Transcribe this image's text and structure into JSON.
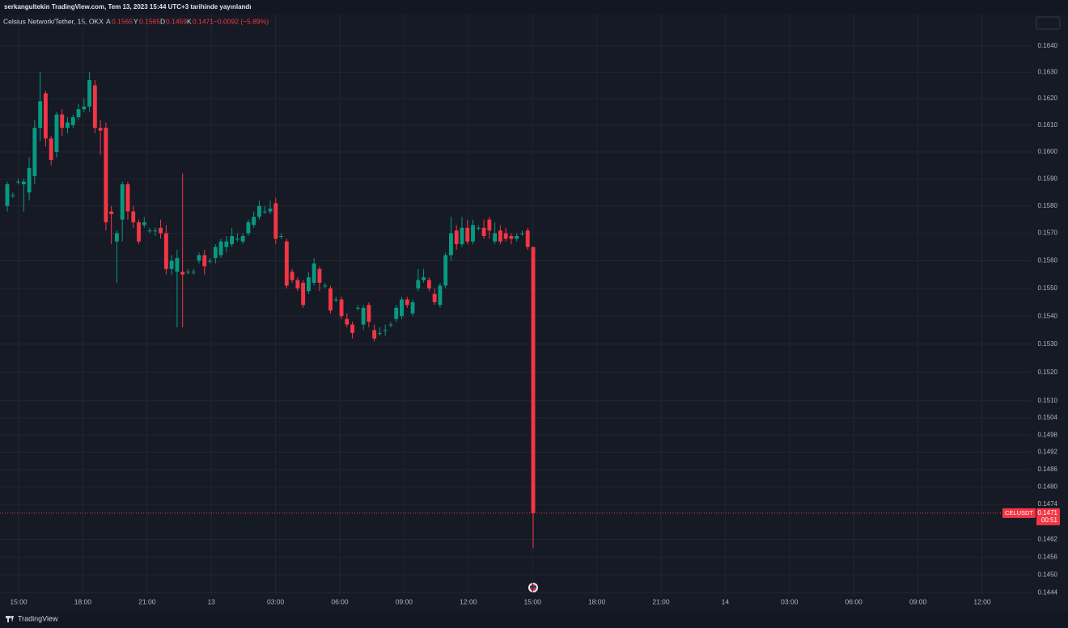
{
  "header": "serkangultekin TradingView.com, Tem 13, 2023 15:44 UTC+3 tarihinde yayınlandı",
  "footer": "TradingView",
  "chart_data": {
    "type": "candlestick",
    "title": "Celsius Network/Tether, 15, OKX",
    "ohlc_legend": [
      {
        "label": "A",
        "value": 0.1565
      },
      {
        "label": "Y",
        "value": 0.1565
      },
      {
        "label": "D",
        "value": 0.1459
      },
      {
        "label": "K",
        "value": 0.1471
      }
    ],
    "change_label": "−0.0092 (−5.89%)",
    "last_price": {
      "symbol": "CELUSDT",
      "value": 0.1471,
      "countdown": "00:51"
    },
    "up_color": "#089981",
    "down_color": "#f23645",
    "log_scale": true,
    "grid": true,
    "ylim": [
      0.1443,
      0.1652
    ],
    "yticks": [
      {
        "value": 0.164,
        "label": "0.1640"
      },
      {
        "value": 0.163,
        "label": "0.1630"
      },
      {
        "value": 0.162,
        "label": "0.1620"
      },
      {
        "value": 0.161,
        "label": "0.1610"
      },
      {
        "value": 0.16,
        "label": "0.1600"
      },
      {
        "value": 0.159,
        "label": "0.1590"
      },
      {
        "value": 0.158,
        "label": "0.1580"
      },
      {
        "value": 0.157,
        "label": "0.1570"
      },
      {
        "value": 0.156,
        "label": "0.1560"
      },
      {
        "value": 0.155,
        "label": "0.1550"
      },
      {
        "value": 0.154,
        "label": "0.1540"
      },
      {
        "value": 0.153,
        "label": "0.1530"
      },
      {
        "value": 0.152,
        "label": "0.1520"
      },
      {
        "value": 0.151,
        "label": "0.1510"
      },
      0.1504,
      0.1498,
      0.1492,
      0.1486,
      {
        "value": 0.148,
        "label": "0.1480"
      },
      0.1474,
      0.1462,
      0.1456,
      {
        "value": 0.145,
        "label": "0.1450"
      },
      0.1444
    ],
    "xtick_labels": [
      "15:00",
      "18:00",
      "21:00",
      "13",
      "03:00",
      "06:00",
      "09:00",
      "12:00",
      "15:00",
      "18:00",
      "21:00",
      "14",
      "03:00",
      "06:00",
      "09:00",
      "12:00"
    ],
    "open": [
      0.158,
      0.1584,
      0.1589,
      0.1588,
      0.1585,
      0.1591,
      0.1609,
      0.1622,
      0.1605,
      0.16,
      0.1614,
      0.1609,
      0.161,
      0.1613,
      0.1616,
      0.1617,
      0.1625,
      0.1609,
      0.1609,
      0.1578,
      0.1567,
      0.1575,
      0.1588,
      0.1578,
      0.1574,
      0.1573,
      0.1571,
      0.1571,
      0.1572,
      0.157,
      0.1557,
      0.1556,
      0.1556,
      0.1556,
      0.1556,
      0.156,
      0.1562,
      0.156,
      0.1561,
      0.1562,
      0.1565,
      0.1566,
      0.1568,
      0.1567,
      0.157,
      0.1573,
      0.1576,
      0.1578,
      0.1578,
      0.1581,
      0.1569,
      0.1567,
      0.1556,
      0.1553,
      0.1552,
      0.1549,
      0.1552,
      0.1557,
      0.1551,
      0.155,
      0.1546,
      0.1546,
      0.1539,
      0.1537,
      0.1543,
      0.1537,
      0.1544,
      0.1535,
      0.1534,
      0.1535,
      0.1537,
      0.1539,
      0.154,
      0.1546,
      0.1541,
      0.155,
      0.1553,
      0.1553,
      0.1548,
      0.1544,
      0.1551,
      0.1562,
      0.1571,
      0.1566,
      0.1572,
      0.1567,
      0.1572,
      0.1572,
      0.1575,
      0.1567,
      0.1571,
      0.157,
      0.1569,
      0.1568,
      0.157,
      0.1571,
      0.1565
    ],
    "high": [
      0.1589,
      0.1585,
      0.159,
      0.159,
      0.1598,
      0.1612,
      0.163,
      0.1623,
      0.1606,
      0.1615,
      0.1616,
      0.1613,
      0.1614,
      0.1618,
      0.162,
      0.163,
      0.1627,
      0.1612,
      0.1611,
      0.158,
      0.1571,
      0.1589,
      0.1589,
      0.158,
      0.1575,
      0.1576,
      0.1572,
      0.1572,
      0.1575,
      0.1573,
      0.1562,
      0.1564,
      0.1592,
      0.1557,
      0.1557,
      0.1563,
      0.1564,
      0.1561,
      0.1566,
      0.1568,
      0.1569,
      0.1572,
      0.157,
      0.157,
      0.1575,
      0.1578,
      0.1582,
      0.158,
      0.1582,
      0.1583,
      0.157,
      0.1568,
      0.1557,
      0.1554,
      0.1553,
      0.1556,
      0.1561,
      0.1558,
      0.1552,
      0.1551,
      0.1547,
      0.1547,
      0.1541,
      0.1538,
      0.1544,
      0.1544,
      0.1545,
      0.1537,
      0.1536,
      0.1537,
      0.1538,
      0.1544,
      0.1547,
      0.1547,
      0.1546,
      0.1557,
      0.1557,
      0.1554,
      0.155,
      0.1552,
      0.1563,
      0.1576,
      0.1573,
      0.1576,
      0.1575,
      0.1575,
      0.1573,
      0.1575,
      0.1576,
      0.1574,
      0.1573,
      0.1572,
      0.157,
      0.157,
      0.1571,
      0.1572,
      0.1565
    ],
    "low": [
      0.1578,
      0.1583,
      0.1588,
      0.1578,
      0.1582,
      0.1588,
      0.1604,
      0.1602,
      0.1595,
      0.1598,
      0.1606,
      0.1607,
      0.1609,
      0.1612,
      0.1615,
      0.1615,
      0.1607,
      0.1599,
      0.1571,
      0.1566,
      0.1552,
      0.1567,
      0.1575,
      0.1572,
      0.1566,
      0.1572,
      0.157,
      0.1569,
      0.1568,
      0.1555,
      0.1555,
      0.1536,
      0.1536,
      0.1555,
      0.1555,
      0.1559,
      0.1555,
      0.1559,
      0.1559,
      0.1561,
      0.1563,
      0.1565,
      0.1567,
      0.1566,
      0.1569,
      0.1572,
      0.1575,
      0.1577,
      0.1577,
      0.1566,
      0.1568,
      0.155,
      0.1552,
      0.1549,
      0.1543,
      0.1548,
      0.1551,
      0.1549,
      0.155,
      0.1541,
      0.1545,
      0.1539,
      0.1536,
      0.1532,
      0.1542,
      0.1535,
      0.1536,
      0.1531,
      0.1533,
      0.1533,
      0.1536,
      0.1538,
      0.1539,
      0.1543,
      0.154,
      0.1549,
      0.1552,
      0.1549,
      0.1544,
      0.1543,
      0.155,
      0.156,
      0.1564,
      0.1565,
      0.1566,
      0.1566,
      0.1571,
      0.1568,
      0.1568,
      0.1566,
      0.1566,
      0.1567,
      0.1566,
      0.1567,
      0.1569,
      0.1564,
      0.1459
    ],
    "close": [
      0.1588,
      0.1584,
      0.1589,
      0.1589,
      0.1594,
      0.1609,
      0.1619,
      0.1605,
      0.1597,
      0.1614,
      0.1609,
      0.1611,
      0.1613,
      0.1616,
      0.1617,
      0.1627,
      0.1609,
      0.1608,
      0.1574,
      0.1577,
      0.157,
      0.1588,
      0.1578,
      0.1574,
      0.1567,
      0.1574,
      0.1571,
      0.1571,
      0.157,
      0.1557,
      0.156,
      0.1561,
      0.1555,
      0.1556,
      0.1556,
      0.1562,
      0.1558,
      0.156,
      0.1565,
      0.1567,
      0.1567,
      0.1569,
      0.1568,
      0.1569,
      0.1574,
      0.1576,
      0.158,
      0.1578,
      0.1579,
      0.1568,
      0.1569,
      0.1551,
      0.1553,
      0.155,
      0.1544,
      0.1554,
      0.1559,
      0.1552,
      0.1551,
      0.1542,
      0.1546,
      0.154,
      0.1537,
      0.1534,
      0.1543,
      0.1543,
      0.1538,
      0.1532,
      0.1534,
      0.1535,
      0.1537,
      0.1543,
      0.1546,
      0.1544,
      0.1545,
      0.1553,
      0.1554,
      0.155,
      0.1545,
      0.1551,
      0.1562,
      0.157,
      0.1566,
      0.1572,
      0.1567,
      0.1573,
      0.1572,
      0.1569,
      0.1571,
      0.157,
      0.1567,
      0.1568,
      0.1568,
      0.1569,
      0.157,
      0.1565,
      0.1471
    ]
  }
}
